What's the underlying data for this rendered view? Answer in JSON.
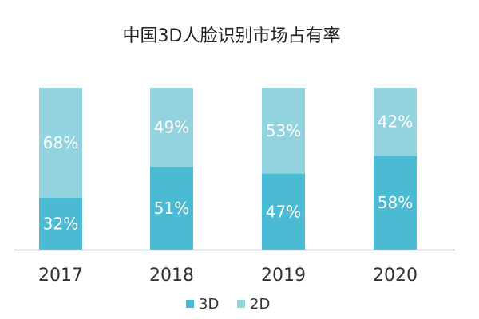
{
  "chart_data": {
    "type": "bar",
    "stacked": true,
    "title": "中国3D人脸识别市场占有率",
    "categories": [
      "2017",
      "2018",
      "2019",
      "2020"
    ],
    "series": [
      {
        "name": "3D",
        "values": [
          32,
          51,
          47,
          58
        ],
        "labels": [
          "32%",
          "51%",
          "47%",
          "58%"
        ],
        "color": "#4BBBD3"
      },
      {
        "name": "2D",
        "values": [
          68,
          49,
          53,
          42
        ],
        "labels": [
          "68%",
          "49%",
          "53%",
          "42%"
        ],
        "color": "#93D3E0"
      }
    ],
    "ylim": [
      0,
      100
    ],
    "grid": false,
    "legend_position": "bottom",
    "axis_color": "#BFBFBF"
  }
}
